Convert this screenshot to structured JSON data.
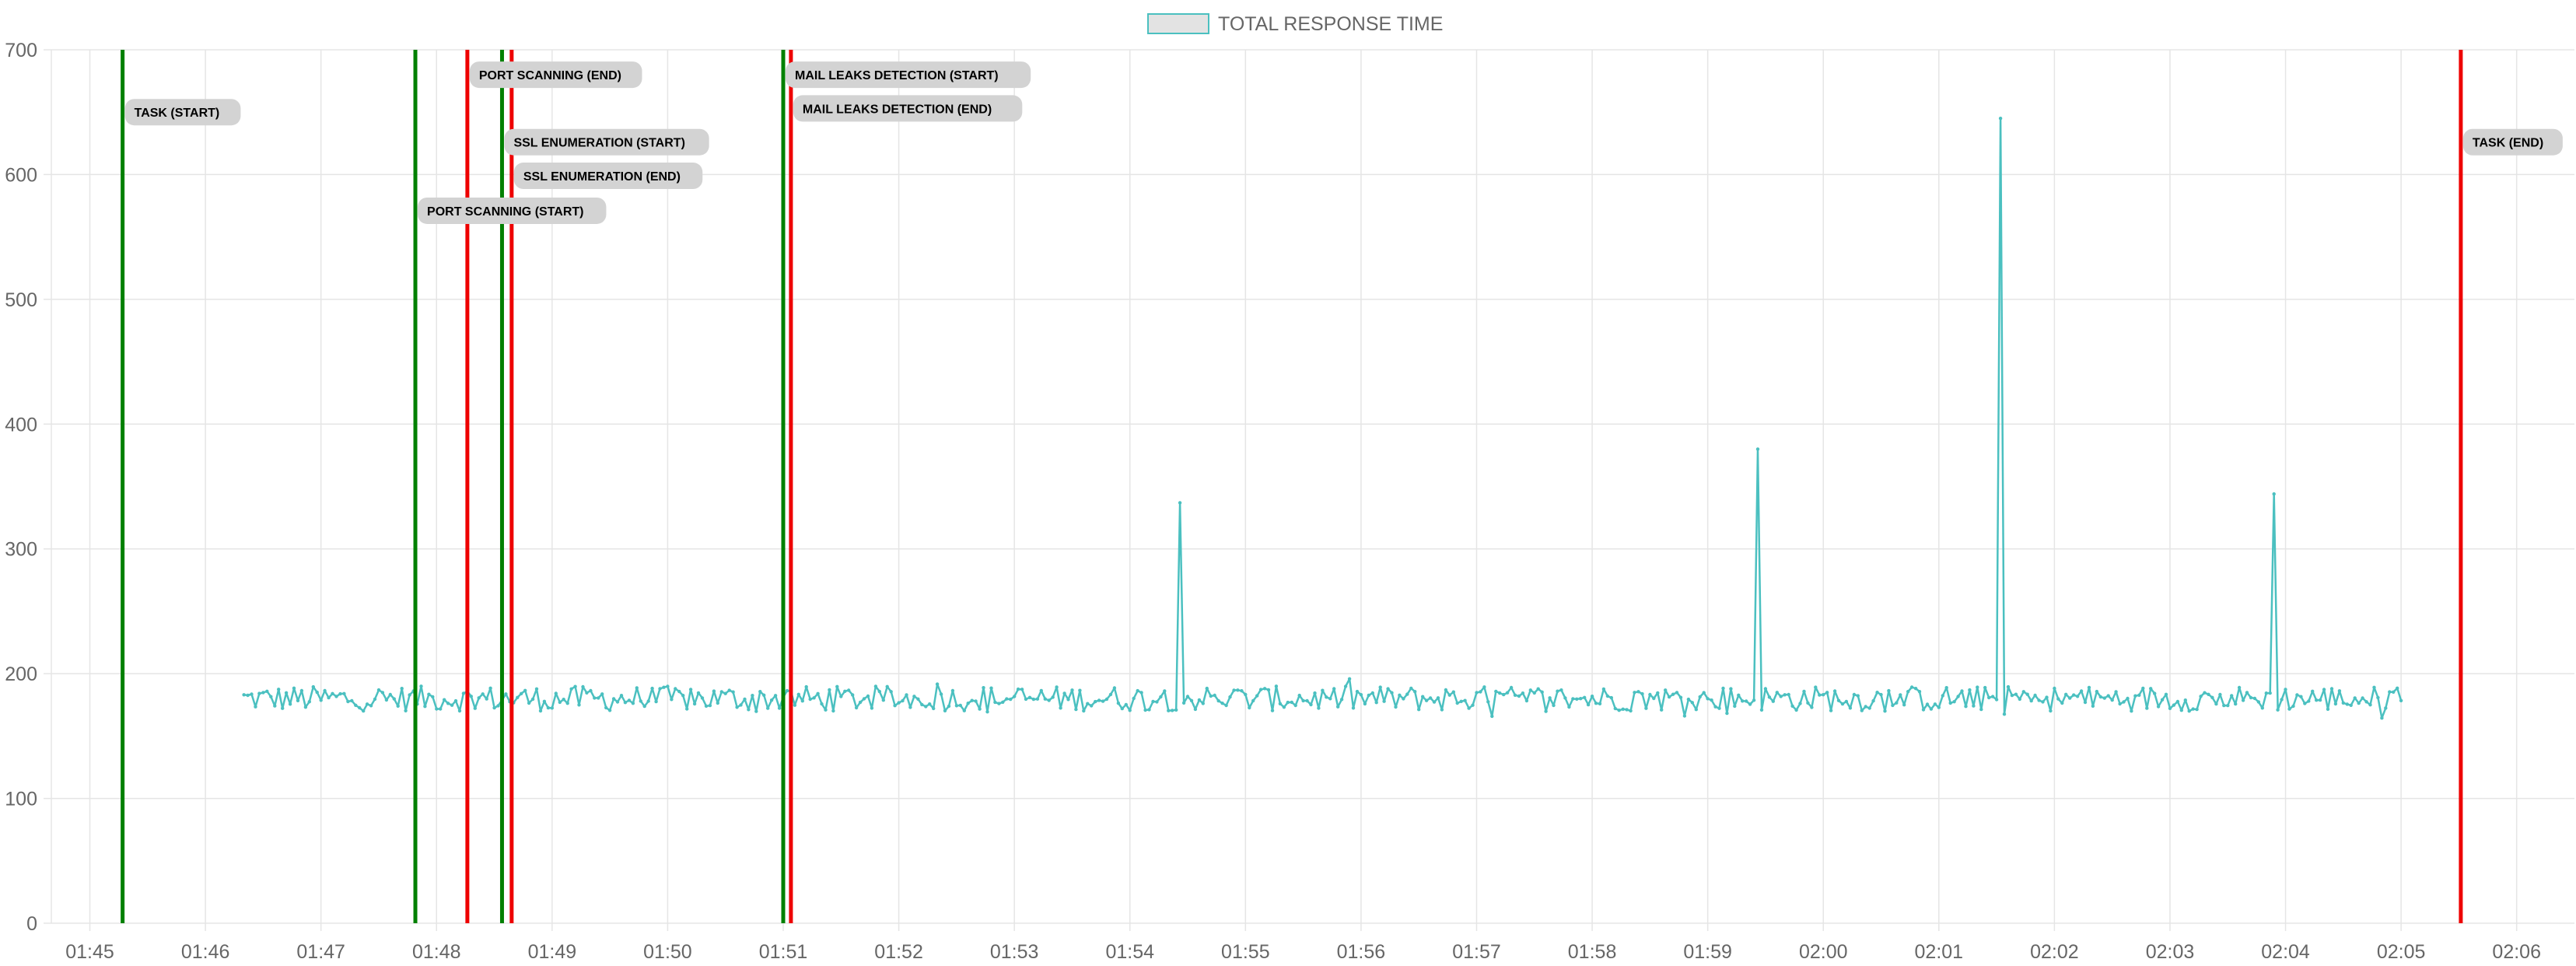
{
  "chart_data": {
    "type": "line",
    "legend": {
      "label": "TOTAL RESPONSE TIME",
      "position": "top"
    },
    "colors": {
      "series": "#4bc0c0",
      "legend_fill": "#e3e3e3",
      "start_marker": "#008000",
      "end_marker": "#ee0000",
      "annotation_bg": "#d3d3d3",
      "grid": "#e5e5e5",
      "text": "#666666"
    },
    "y_axis": {
      "min": 0,
      "max": 700,
      "ticks": [
        0,
        100,
        200,
        300,
        400,
        500,
        600,
        700
      ]
    },
    "x_axis": {
      "min": "01:44:40",
      "max": "02:06:30",
      "ticks": [
        "01:45",
        "01:46",
        "01:47",
        "01:48",
        "01:49",
        "01:50",
        "01:51",
        "01:52",
        "01:53",
        "01:54",
        "01:55",
        "01:56",
        "01:57",
        "01:58",
        "01:59",
        "02:00",
        "02:01",
        "02:02",
        "02:03",
        "02:04",
        "02:05",
        "02:06"
      ]
    },
    "grid": true,
    "series": [
      {
        "name": "TOTAL RESPONSE TIME",
        "start": "01:46:20",
        "end": "02:05:00",
        "baseline": 180,
        "noise": 10,
        "spikes": [
          {
            "time": "01:54:26",
            "value": 337
          },
          {
            "time": "01:59:26",
            "value": 380
          },
          {
            "time": "02:01:31",
            "value": 645
          },
          {
            "time": "02:03:54",
            "value": 344
          }
        ]
      }
    ],
    "annotations": [
      {
        "time": "01:45:17",
        "kind": "start",
        "label": "TASK (START)",
        "label_value": 650,
        "label_side": "right"
      },
      {
        "time": "01:47:49",
        "kind": "start",
        "label": "PORT SCANNING (START)",
        "label_value": 571,
        "label_side": "right"
      },
      {
        "time": "01:48:16",
        "kind": "end",
        "label": "PORT SCANNING (END)",
        "label_value": 680,
        "label_side": "right"
      },
      {
        "time": "01:48:34",
        "kind": "start",
        "label": "SSL ENUMERATION (START)",
        "label_value": 626,
        "label_side": "right"
      },
      {
        "time": "01:48:39",
        "kind": "end",
        "label": "SSL ENUMERATION (END)",
        "label_value": 599,
        "label_side": "right"
      },
      {
        "time": "01:51:00",
        "kind": "start",
        "label": "MAIL LEAKS DETECTION (START)",
        "label_value": 680,
        "label_side": "right"
      },
      {
        "time": "01:51:04",
        "kind": "end",
        "label": "MAIL LEAKS DETECTION (END)",
        "label_value": 653,
        "label_side": "right"
      },
      {
        "time": "02:05:31",
        "kind": "end",
        "label": "TASK (END)",
        "label_value": 626,
        "label_side": "right"
      }
    ]
  }
}
